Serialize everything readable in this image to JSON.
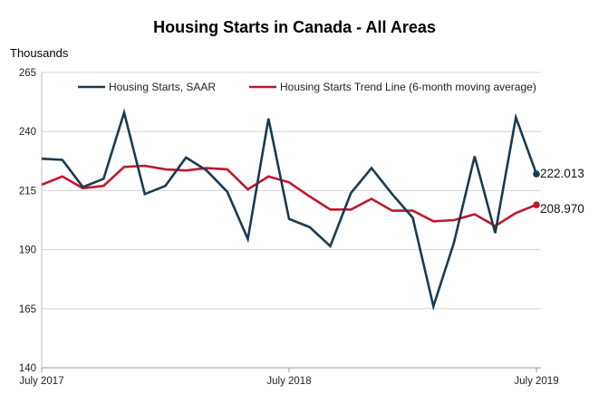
{
  "chart_data": {
    "type": "line",
    "title": "Housing Starts in Canada - All Areas",
    "ylabel": "Thousands",
    "xlabel": "",
    "ylim": [
      140,
      265
    ],
    "yticks": [
      140,
      165,
      190,
      215,
      240,
      265
    ],
    "x_tick_labels": [
      {
        "index": 0,
        "label": "July 2017"
      },
      {
        "index": 12,
        "label": "July 2018"
      },
      {
        "index": 24,
        "label": "July 2019"
      }
    ],
    "grid": "horizontal",
    "legend_position": "top",
    "series": [
      {
        "name": "Housing Starts, SAAR",
        "color": "#1b3a4f",
        "values": [
          228.5,
          228.0,
          216.5,
          220.0,
          248.0,
          213.5,
          217.0,
          229.0,
          223.5,
          214.5,
          194.5,
          245.5,
          203.0,
          199.5,
          191.5,
          214.0,
          224.5,
          213.5,
          203.5,
          166.0,
          193.0,
          229.5,
          197.0,
          246.0,
          222.013
        ],
        "end_label": "222.013"
      },
      {
        "name": "Housing Starts Trend Line (6-month moving average)",
        "color": "#c0182d",
        "values": [
          217.5,
          221.0,
          216.0,
          217.0,
          225.0,
          225.5,
          224.0,
          223.5,
          224.5,
          224.0,
          215.5,
          221.0,
          218.5,
          212.5,
          207.0,
          207.0,
          211.5,
          206.5,
          206.5,
          202.0,
          202.5,
          205.0,
          200.0,
          205.5,
          208.97
        ],
        "end_label": "208.970"
      }
    ]
  }
}
